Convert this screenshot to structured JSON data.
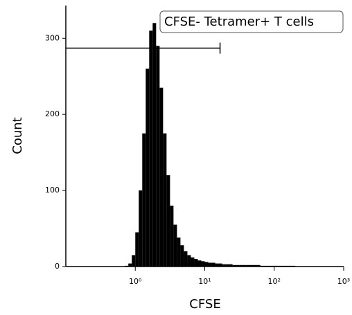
{
  "chart_data": {
    "type": "histogram",
    "xlabel": "CFSE",
    "ylabel": "Count",
    "xscale": "log",
    "color": "#000000",
    "xlim": [
      0.1,
      1000
    ],
    "ylim": [
      0,
      343
    ],
    "xticks": [
      {
        "value": 1,
        "label": "10⁰"
      },
      {
        "value": 10,
        "label": "10¹"
      },
      {
        "value": 100,
        "label": "10²"
      },
      {
        "value": 1000,
        "label": "10³"
      }
    ],
    "yticks": [
      0,
      100,
      200,
      300
    ],
    "bins": [
      0.708,
      0.794,
      0.891,
      1,
      1.122,
      1.259,
      1.413,
      1.585,
      1.778,
      1.995,
      2.239,
      2.512,
      2.818,
      3.162,
      3.548,
      3.981,
      4.467,
      5.012,
      5.623,
      6.31,
      7.079,
      7.943,
      8.913,
      10,
      11.22,
      12.59,
      14.13,
      15.85,
      17.78,
      19.95,
      22.39,
      25.12,
      28.18,
      31.62,
      35.48,
      39.81,
      63.1,
      100,
      200
    ],
    "values": [
      1,
      4,
      15,
      45,
      100,
      175,
      260,
      310,
      320,
      290,
      235,
      175,
      120,
      80,
      55,
      38,
      28,
      20,
      15,
      12,
      10,
      8,
      7,
      6,
      5,
      5,
      4,
      4,
      3,
      3,
      3,
      2,
      2,
      2,
      2,
      2,
      1,
      1
    ],
    "gate": {
      "label": "CFSE- Tetramer+ T cells",
      "x": [
        0.1,
        16.6
      ],
      "y": 287
    }
  }
}
